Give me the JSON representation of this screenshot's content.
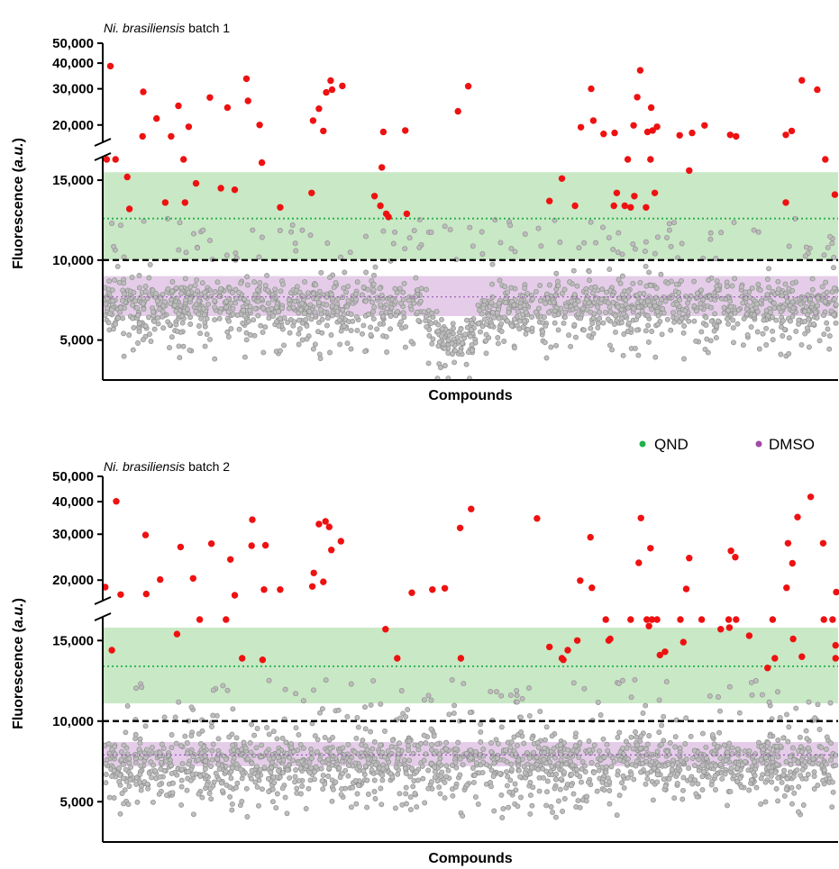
{
  "legend": [
    {
      "label": "QND",
      "color": "#22b14c"
    },
    {
      "label": "DMSO",
      "color": "#a04aa8"
    }
  ],
  "colors": {
    "hit": "#ee1111",
    "compound_fill": "#bdbdbd",
    "compound_stroke": "#8f8f8f",
    "qnd_band": "#c9e8c5",
    "qnd_line": "#22b14c",
    "dmso_band": "#e5cde9",
    "dmso_line": "#9b59b6",
    "threshold": "#000000"
  },
  "chart_data": [
    {
      "type": "scatter",
      "title_italic": "Ni. brasiliensis",
      "title_rest": " batch 1",
      "xlabel": "Compounds",
      "ylabel": "Fluorescence",
      "ylabel_unit": "a.u.",
      "yticks": [
        5000,
        10000,
        15000,
        20000,
        30000,
        40000,
        50000
      ],
      "ytick_labels": [
        "5,000",
        "10,000",
        "15,000",
        "20,000",
        "30,000",
        "40,000",
        "50,000"
      ],
      "y_axis_segments": [
        {
          "range": [
            2500,
            16300
          ],
          "scale": "linear"
        },
        {
          "range": [
            17500,
            50000
          ],
          "scale": "log"
        }
      ],
      "x_count": 2000,
      "threshold": 10000,
      "qnd": {
        "mean": 12600,
        "band": [
          10000,
          15500
        ]
      },
      "dmso": {
        "mean": 7700,
        "band": [
          6500,
          9000
        ]
      },
      "compound_cloud": {
        "median": 7100,
        "spread": 900,
        "points": 1700,
        "dip_region": [
          0.43,
          0.53
        ],
        "dip_median": 4900
      },
      "hits": [
        {
          "x": 0.003,
          "y": 17400
        },
        {
          "x": 0.008,
          "y": 38700
        },
        {
          "x": 0.015,
          "y": 17300
        },
        {
          "x": 0.031,
          "y": 15200
        },
        {
          "x": 0.034,
          "y": 13200
        },
        {
          "x": 0.052,
          "y": 17600
        },
        {
          "x": 0.053,
          "y": 29000
        },
        {
          "x": 0.071,
          "y": 21500
        },
        {
          "x": 0.083,
          "y": 13600
        },
        {
          "x": 0.091,
          "y": 17600
        },
        {
          "x": 0.101,
          "y": 24800
        },
        {
          "x": 0.108,
          "y": 16300
        },
        {
          "x": 0.11,
          "y": 13600
        },
        {
          "x": 0.115,
          "y": 19600
        },
        {
          "x": 0.125,
          "y": 14800
        },
        {
          "x": 0.144,
          "y": 27200
        },
        {
          "x": 0.159,
          "y": 14500
        },
        {
          "x": 0.168,
          "y": 24300
        },
        {
          "x": 0.178,
          "y": 14400
        },
        {
          "x": 0.194,
          "y": 33600
        },
        {
          "x": 0.196,
          "y": 26200
        },
        {
          "x": 0.212,
          "y": 20000
        },
        {
          "x": 0.215,
          "y": 16100
        },
        {
          "x": 0.24,
          "y": 13300
        },
        {
          "x": 0.283,
          "y": 14200
        },
        {
          "x": 0.285,
          "y": 21000
        },
        {
          "x": 0.293,
          "y": 24000
        },
        {
          "x": 0.299,
          "y": 18700
        },
        {
          "x": 0.303,
          "y": 28800
        },
        {
          "x": 0.309,
          "y": 32900
        },
        {
          "x": 0.311,
          "y": 29700
        },
        {
          "x": 0.325,
          "y": 31000
        },
        {
          "x": 0.369,
          "y": 14000
        },
        {
          "x": 0.377,
          "y": 13400
        },
        {
          "x": 0.379,
          "y": 15800
        },
        {
          "x": 0.381,
          "y": 18500
        },
        {
          "x": 0.385,
          "y": 12900
        },
        {
          "x": 0.388,
          "y": 12700
        },
        {
          "x": 0.411,
          "y": 18800
        },
        {
          "x": 0.413,
          "y": 12900
        },
        {
          "x": 0.483,
          "y": 23300
        },
        {
          "x": 0.497,
          "y": 30900
        },
        {
          "x": 0.608,
          "y": 13700
        },
        {
          "x": 0.625,
          "y": 15100
        },
        {
          "x": 0.643,
          "y": 13400
        },
        {
          "x": 0.651,
          "y": 19500
        },
        {
          "x": 0.665,
          "y": 30000
        },
        {
          "x": 0.668,
          "y": 21000
        },
        {
          "x": 0.682,
          "y": 18100
        },
        {
          "x": 0.696,
          "y": 13400
        },
        {
          "x": 0.697,
          "y": 18300
        },
        {
          "x": 0.7,
          "y": 14200
        },
        {
          "x": 0.711,
          "y": 13400
        },
        {
          "x": 0.715,
          "y": 17400
        },
        {
          "x": 0.719,
          "y": 13300
        },
        {
          "x": 0.723,
          "y": 19900
        },
        {
          "x": 0.724,
          "y": 14000
        },
        {
          "x": 0.728,
          "y": 27300
        },
        {
          "x": 0.732,
          "y": 36900
        },
        {
          "x": 0.74,
          "y": 13300
        },
        {
          "x": 0.742,
          "y": 18500
        },
        {
          "x": 0.746,
          "y": 17000
        },
        {
          "x": 0.747,
          "y": 24300
        },
        {
          "x": 0.749,
          "y": 18800
        },
        {
          "x": 0.752,
          "y": 14200
        },
        {
          "x": 0.755,
          "y": 19600
        },
        {
          "x": 0.786,
          "y": 17800
        },
        {
          "x": 0.799,
          "y": 15600
        },
        {
          "x": 0.803,
          "y": 18300
        },
        {
          "x": 0.82,
          "y": 19900
        },
        {
          "x": 0.855,
          "y": 17900
        },
        {
          "x": 0.863,
          "y": 17600
        },
        {
          "x": 0.931,
          "y": 13600
        },
        {
          "x": 0.931,
          "y": 17900
        },
        {
          "x": 0.939,
          "y": 18700
        },
        {
          "x": 0.953,
          "y": 33000
        },
        {
          "x": 0.974,
          "y": 29700
        },
        {
          "x": 0.985,
          "y": 17400
        },
        {
          "x": 0.998,
          "y": 14100
        }
      ]
    },
    {
      "type": "scatter",
      "title_italic": "Ni. brasiliensis",
      "title_rest": " batch 2",
      "xlabel": "Compounds",
      "ylabel": "Fluorescence",
      "ylabel_unit": "a.u.",
      "yticks": [
        5000,
        10000,
        15000,
        20000,
        30000,
        40000,
        50000
      ],
      "ytick_labels": [
        "5,000",
        "10,000",
        "15,000",
        "20,000",
        "30,000",
        "40,000",
        "50,000"
      ],
      "y_axis_segments": [
        {
          "range": [
            2500,
            16300
          ],
          "scale": "linear"
        },
        {
          "range": [
            17500,
            50000
          ],
          "scale": "log"
        }
      ],
      "x_count": 2000,
      "threshold": 10000,
      "qnd": {
        "mean": 13400,
        "band": [
          11100,
          15800
        ]
      },
      "dmso": {
        "mean": 7900,
        "band": [
          7200,
          8700
        ]
      },
      "compound_cloud": {
        "median": 7300,
        "spread": 1000,
        "points": 1700
      },
      "hits": [
        {
          "x": 0.001,
          "y": 18800
        },
        {
          "x": 0.01,
          "y": 14400
        },
        {
          "x": 0.016,
          "y": 40100
        },
        {
          "x": 0.022,
          "y": 17600
        },
        {
          "x": 0.056,
          "y": 29800
        },
        {
          "x": 0.057,
          "y": 17700
        },
        {
          "x": 0.076,
          "y": 20100
        },
        {
          "x": 0.099,
          "y": 15400
        },
        {
          "x": 0.104,
          "y": 26800
        },
        {
          "x": 0.121,
          "y": 20300
        },
        {
          "x": 0.13,
          "y": 16300
        },
        {
          "x": 0.146,
          "y": 27600
        },
        {
          "x": 0.166,
          "y": 16900
        },
        {
          "x": 0.172,
          "y": 24000
        },
        {
          "x": 0.178,
          "y": 17500
        },
        {
          "x": 0.188,
          "y": 13900
        },
        {
          "x": 0.201,
          "y": 27100
        },
        {
          "x": 0.202,
          "y": 34100
        },
        {
          "x": 0.216,
          "y": 13800
        },
        {
          "x": 0.218,
          "y": 18400
        },
        {
          "x": 0.22,
          "y": 27200
        },
        {
          "x": 0.24,
          "y": 18400
        },
        {
          "x": 0.284,
          "y": 18900
        },
        {
          "x": 0.286,
          "y": 21300
        },
        {
          "x": 0.293,
          "y": 32800
        },
        {
          "x": 0.299,
          "y": 19700
        },
        {
          "x": 0.302,
          "y": 33600
        },
        {
          "x": 0.307,
          "y": 32000
        },
        {
          "x": 0.31,
          "y": 26100
        },
        {
          "x": 0.323,
          "y": 28200
        },
        {
          "x": 0.384,
          "y": 15700
        },
        {
          "x": 0.4,
          "y": 13900
        },
        {
          "x": 0.42,
          "y": 17900
        },
        {
          "x": 0.448,
          "y": 18400
        },
        {
          "x": 0.465,
          "y": 18600
        },
        {
          "x": 0.486,
          "y": 31700
        },
        {
          "x": 0.487,
          "y": 13900
        },
        {
          "x": 0.501,
          "y": 37500
        },
        {
          "x": 0.591,
          "y": 34500
        },
        {
          "x": 0.608,
          "y": 14600
        },
        {
          "x": 0.625,
          "y": 13900
        },
        {
          "x": 0.627,
          "y": 13800
        },
        {
          "x": 0.633,
          "y": 14400
        },
        {
          "x": 0.646,
          "y": 15000
        },
        {
          "x": 0.65,
          "y": 19900
        },
        {
          "x": 0.664,
          "y": 29200
        },
        {
          "x": 0.666,
          "y": 18700
        },
        {
          "x": 0.689,
          "y": 15000
        },
        {
          "x": 0.685,
          "y": 17300
        },
        {
          "x": 0.691,
          "y": 15100
        },
        {
          "x": 0.719,
          "y": 17200
        },
        {
          "x": 0.73,
          "y": 23300
        },
        {
          "x": 0.733,
          "y": 34600
        },
        {
          "x": 0.741,
          "y": 16800
        },
        {
          "x": 0.744,
          "y": 15900
        },
        {
          "x": 0.746,
          "y": 26500
        },
        {
          "x": 0.748,
          "y": 16800
        },
        {
          "x": 0.755,
          "y": 16800
        },
        {
          "x": 0.759,
          "y": 14100
        },
        {
          "x": 0.766,
          "y": 14300
        },
        {
          "x": 0.787,
          "y": 16900
        },
        {
          "x": 0.791,
          "y": 14900
        },
        {
          "x": 0.795,
          "y": 18500
        },
        {
          "x": 0.799,
          "y": 24300
        },
        {
          "x": 0.816,
          "y": 17100
        },
        {
          "x": 0.842,
          "y": 15700
        },
        {
          "x": 0.854,
          "y": 15800
        },
        {
          "x": 0.853,
          "y": 17000
        },
        {
          "x": 0.856,
          "y": 25900
        },
        {
          "x": 0.862,
          "y": 24500
        },
        {
          "x": 0.863,
          "y": 17200
        },
        {
          "x": 0.881,
          "y": 15300
        },
        {
          "x": 0.906,
          "y": 13300
        },
        {
          "x": 0.916,
          "y": 13900
        },
        {
          "x": 0.913,
          "y": 17300
        },
        {
          "x": 0.932,
          "y": 18700
        },
        {
          "x": 0.934,
          "y": 27700
        },
        {
          "x": 0.94,
          "y": 23200
        },
        {
          "x": 0.941,
          "y": 15100
        },
        {
          "x": 0.947,
          "y": 34900
        },
        {
          "x": 0.953,
          "y": 14000
        },
        {
          "x": 0.965,
          "y": 41700
        },
        {
          "x": 0.982,
          "y": 27700
        },
        {
          "x": 0.983,
          "y": 16800
        },
        {
          "x": 0.995,
          "y": 17300
        },
        {
          "x": 0.999,
          "y": 14700
        },
        {
          "x": 1.0,
          "y": 18000
        },
        {
          "x": 0.999,
          "y": 13900
        }
      ]
    }
  ]
}
